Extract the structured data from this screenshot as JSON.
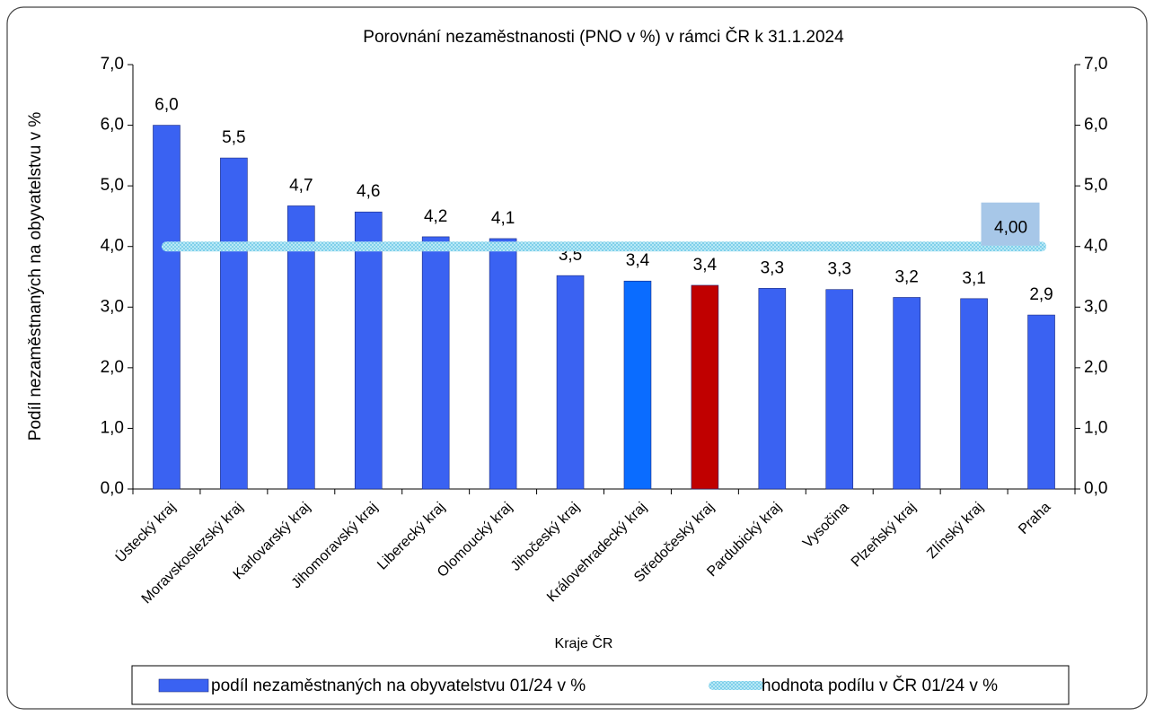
{
  "chart_data": {
    "type": "bar",
    "title": "Porovnání nezaměstnanosti (PNO v %) v rámci ČR k 31.1.2024",
    "y_label": "Podíl nezaměstnaných na obyvatelstvu v %",
    "x_label": "Kraje ČR",
    "categories": [
      "Ústecký kraj",
      "Moravskoslezský kraj",
      "Karlovarský kraj",
      "Jihomoravský kraj",
      "Liberecký kraj",
      "Olomoucký kraj",
      "Jihočeský kraj",
      "Královehradecký kraj",
      "Středočeský kraj",
      "Pardubický kraj",
      "Vysočina",
      "Plzeňský kraj",
      "Zlínský kraj",
      "Praha"
    ],
    "series": [
      {
        "name": "podíl nezaměstnaných na obyvatelstvu 01/24 v %",
        "type": "bar",
        "color": "#3a62f2",
        "colors": [
          "#3a62f2",
          "#3a62f2",
          "#3a62f2",
          "#3a62f2",
          "#3a62f2",
          "#3a62f2",
          "#3a62f2",
          "#0a6cff",
          "#c00000",
          "#3a62f2",
          "#3a62f2",
          "#3a62f2",
          "#3a62f2",
          "#3a62f2"
        ],
        "values": [
          6.0,
          5.46,
          4.67,
          4.57,
          4.16,
          4.13,
          3.52,
          3.43,
          3.36,
          3.31,
          3.29,
          3.16,
          3.14,
          2.87
        ],
        "value_labels": [
          "6,0",
          "5,5",
          "4,7",
          "4,6",
          "4,2",
          "4,1",
          "3,5",
          "3,4",
          "3,4",
          "3,3",
          "3,3",
          "3,2",
          "3,1",
          "2,9"
        ]
      },
      {
        "name": "hodnota podílu v ČR 01/24 v %",
        "type": "line",
        "color": "#9fdcf0",
        "values": [
          4,
          4,
          4,
          4,
          4,
          4,
          4,
          4,
          4,
          4,
          4,
          4,
          4,
          4
        ],
        "value_labels": [
          null,
          null,
          null,
          null,
          null,
          null,
          null,
          null,
          null,
          null,
          null,
          null,
          null,
          "4,00"
        ]
      }
    ],
    "ylim": [
      0,
      7
    ],
    "yticks": [
      {
        "value": 0,
        "label": "0,0"
      },
      {
        "value": 1,
        "label": "1,0"
      },
      {
        "value": 2,
        "label": "2,0"
      },
      {
        "value": 3,
        "label": "3,0"
      },
      {
        "value": 4,
        "label": "4,0"
      },
      {
        "value": 5,
        "label": "5,0"
      },
      {
        "value": 6,
        "label": "6,0"
      },
      {
        "value": 7,
        "label": "7,0"
      }
    ],
    "y2lim": [
      0,
      7
    ],
    "y2ticks": [
      {
        "value": 0,
        "label": "0,0"
      },
      {
        "value": 1,
        "label": "1,0"
      },
      {
        "value": 2,
        "label": "2,0"
      },
      {
        "value": 3,
        "label": "3,0"
      },
      {
        "value": 4,
        "label": "4,0"
      },
      {
        "value": 5,
        "label": "5,0"
      },
      {
        "value": 6,
        "label": "6,0"
      },
      {
        "value": 7,
        "label": "7,0"
      }
    ],
    "grid": false,
    "legend": "bottom"
  }
}
